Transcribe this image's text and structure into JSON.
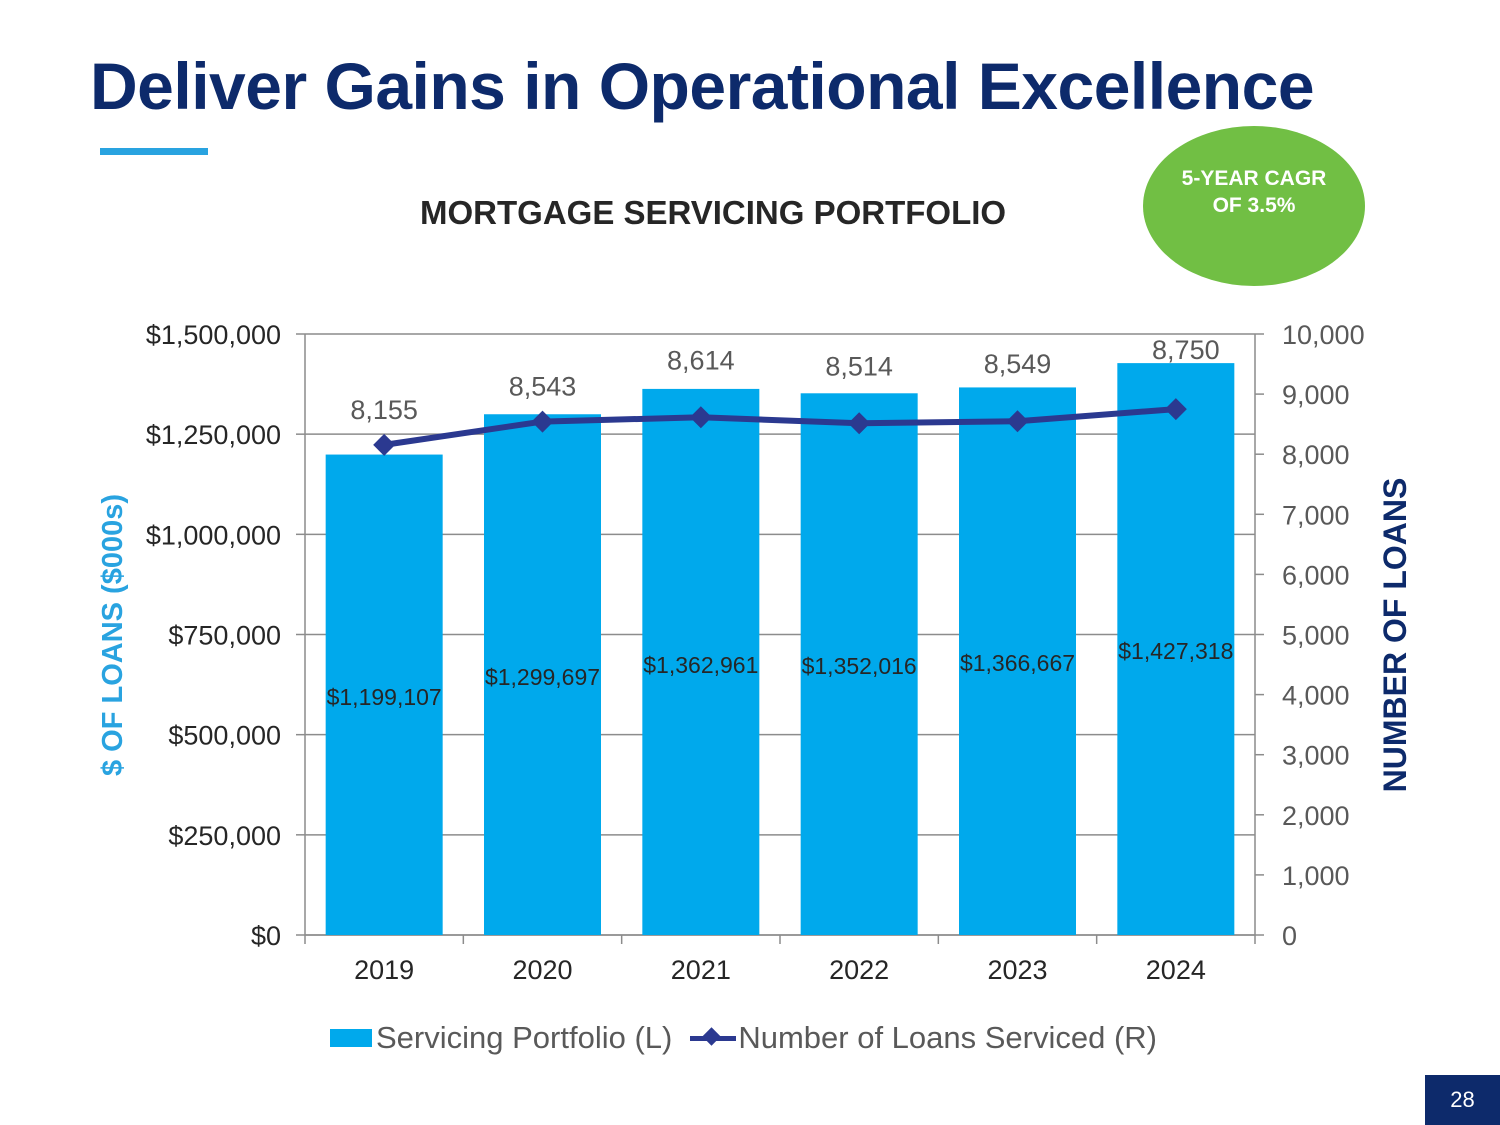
{
  "slide": {
    "title": "Deliver Gains in Operational Excellence",
    "page_number": "28"
  },
  "badge": {
    "line1": "5-YEAR CAGR",
    "line2": "OF  3.5%"
  },
  "legend": {
    "bar_label": "Servicing Portfolio (L)",
    "line_label": "Number of Loans Serviced (R)"
  },
  "colors": {
    "title": "#0d2a6b",
    "bar": "#00a9ec",
    "line": "#2b3990",
    "left_axis_title": "#29a3e0",
    "badge": "#71bf44"
  },
  "chart_data": {
    "type": "bar",
    "title": "MORTGAGE SERVICING PORTFOLIO",
    "categories": [
      "2019",
      "2020",
      "2021",
      "2022",
      "2023",
      "2024"
    ],
    "series": [
      {
        "name": "Servicing Portfolio (L)",
        "type": "bar",
        "axis": "left",
        "values": [
          1199107,
          1299697,
          1362961,
          1352016,
          1366667,
          1427318
        ],
        "labels": [
          "$1,199,107",
          "$1,299,697",
          "$1,362,961",
          "$1,352,016",
          "$1,366,667",
          "$1,427,318"
        ]
      },
      {
        "name": "Number of Loans Serviced (R)",
        "type": "line",
        "axis": "right",
        "values": [
          8155,
          8543,
          8614,
          8514,
          8549,
          8750
        ],
        "labels": [
          "8,155",
          "8,543",
          "8,614",
          "8,514",
          "8,549",
          "8,750"
        ]
      }
    ],
    "ylabel": "$ OF LOANS ($000s)",
    "y2label": "NUMBER OF LOANS",
    "ylim": [
      0,
      1500000
    ],
    "y2lim": [
      0,
      10000
    ],
    "yticks": [
      "$0",
      "$250,000",
      "$500,000",
      "$750,000",
      "$1,000,000",
      "$1,250,000",
      "$1,500,000"
    ],
    "y2ticks": [
      "0",
      "1,000",
      "2,000",
      "3,000",
      "4,000",
      "5,000",
      "6,000",
      "7,000",
      "8,000",
      "9,000",
      "10,000"
    ],
    "grid": true,
    "legend": "bottom"
  }
}
